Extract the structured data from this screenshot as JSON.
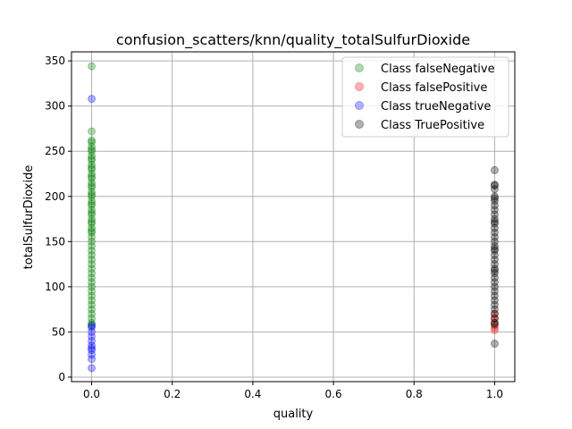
{
  "chart_data": {
    "type": "scatter",
    "title": "confusion_scatters/knn/quality_totalSulfurDioxide",
    "xlabel": "quality",
    "ylabel": "totalSulfurDioxide",
    "xlim": [
      -0.05,
      1.05
    ],
    "ylim": [
      -5,
      360
    ],
    "xticks": [
      0.0,
      0.2,
      0.4,
      0.6,
      0.8,
      1.0
    ],
    "xtick_labels": [
      "0.0",
      "0.2",
      "0.4",
      "0.6",
      "0.8",
      "1.0"
    ],
    "yticks": [
      0,
      50,
      100,
      150,
      200,
      250,
      300,
      350
    ],
    "ytick_labels": [
      "0",
      "50",
      "100",
      "150",
      "200",
      "250",
      "300",
      "350"
    ],
    "grid": true,
    "legend_position": "top-right",
    "series": [
      {
        "name": "Class falseNegative",
        "color": "#008000",
        "x": [
          0,
          0,
          0,
          0,
          0,
          0,
          0,
          0,
          0,
          0,
          0,
          0,
          0,
          0,
          0,
          0,
          0,
          0,
          0,
          0,
          0,
          0,
          0,
          0,
          0,
          0,
          0,
          0,
          0,
          0,
          0,
          0,
          0,
          0,
          0,
          0,
          0,
          0,
          0,
          0,
          0,
          0,
          0,
          0,
          0,
          0,
          0,
          0,
          0,
          0,
          0,
          0,
          0,
          0,
          0
        ],
        "y": [
          344,
          272,
          260,
          255,
          250,
          245,
          240,
          235,
          230,
          225,
          220,
          215,
          210,
          205,
          200,
          195,
          190,
          185,
          180,
          175,
          170,
          165,
          160,
          155,
          150,
          145,
          140,
          135,
          130,
          125,
          120,
          115,
          110,
          105,
          100,
          95,
          90,
          85,
          80,
          75,
          70,
          65,
          60,
          58,
          262,
          252,
          242,
          232,
          222,
          212,
          202,
          192,
          182,
          172,
          162
        ]
      },
      {
        "name": "Class falsePositive",
        "color": "#ff0000",
        "x": [
          1,
          1,
          1,
          1,
          1
        ],
        "y": [
          55,
          60,
          65,
          70,
          52
        ]
      },
      {
        "name": "Class trueNegative",
        "color": "#0000ff",
        "x": [
          0,
          0,
          0,
          0,
          0,
          0,
          0,
          0,
          0,
          0,
          0,
          0
        ],
        "y": [
          308,
          10,
          20,
          25,
          30,
          32,
          35,
          40,
          45,
          50,
          55,
          57
        ]
      },
      {
        "name": "Class TruePositive",
        "color": "#000000",
        "x": [
          1,
          1,
          1,
          1,
          1,
          1,
          1,
          1,
          1,
          1,
          1,
          1,
          1,
          1,
          1,
          1,
          1,
          1,
          1,
          1,
          1,
          1,
          1,
          1,
          1,
          1,
          1,
          1,
          1,
          1,
          1,
          1,
          1,
          1,
          1,
          1,
          1,
          1,
          1
        ],
        "y": [
          37,
          229,
          213,
          208,
          200,
          195,
          190,
          185,
          180,
          175,
          170,
          165,
          160,
          155,
          150,
          145,
          140,
          135,
          130,
          125,
          120,
          115,
          110,
          105,
          100,
          95,
          90,
          85,
          80,
          75,
          70,
          65,
          60,
          58,
          212,
          198,
          172,
          142,
          118
        ]
      }
    ]
  }
}
